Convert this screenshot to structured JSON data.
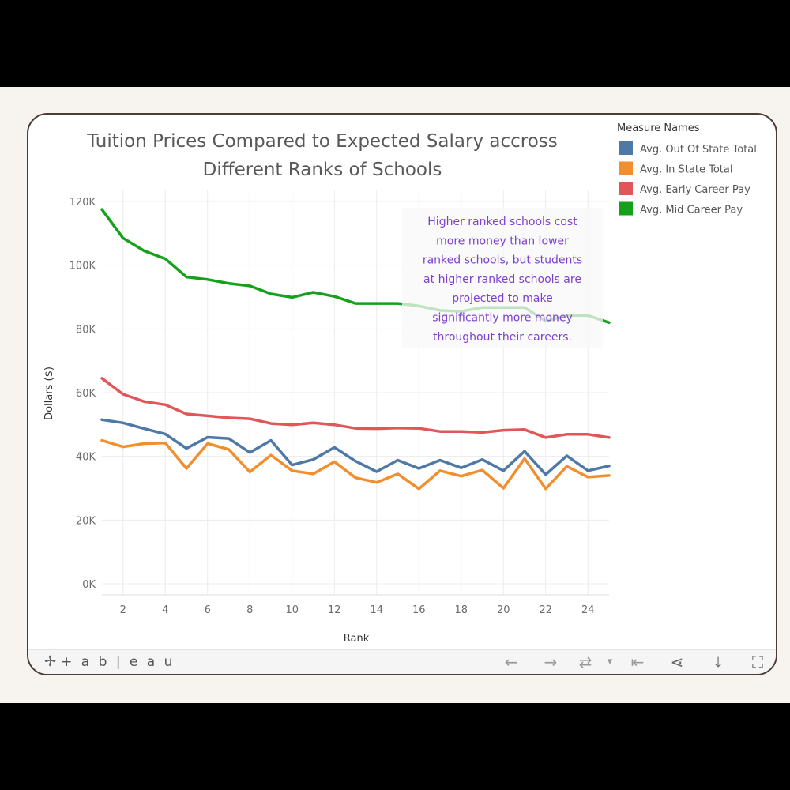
{
  "toolbar": {
    "logo_text": "+ a b | e a u",
    "buttons": [
      {
        "name": "undo-button",
        "icon": "arrow-left-icon",
        "glyph": "←"
      },
      {
        "name": "redo-button",
        "icon": "arrow-right-icon",
        "glyph": "→"
      },
      {
        "name": "revert-button",
        "icon": "revert-icon",
        "glyph": "⇄"
      },
      {
        "name": "revert-dropdown",
        "icon": "chevron-down-icon",
        "glyph": "▾"
      },
      {
        "name": "reset-button",
        "icon": "reset-to-start-icon",
        "glyph": "⇤"
      },
      {
        "name": "share-button",
        "icon": "share-icon",
        "glyph": "⋖"
      },
      {
        "name": "download-button",
        "icon": "download-icon",
        "glyph": "⤓"
      },
      {
        "name": "fullscreen-button",
        "icon": "fullscreen-icon",
        "glyph": "⛶"
      }
    ]
  },
  "chart_data": {
    "type": "line",
    "title_lines": [
      "Tuition Prices Compared to Expected Salary accross",
      "Different Ranks of Schools"
    ],
    "xlabel": "Rank",
    "ylabel": "Dollars ($)",
    "xlim": [
      1,
      25
    ],
    "ylim": [
      0,
      120000
    ],
    "xticks": [
      2,
      4,
      6,
      8,
      10,
      12,
      14,
      16,
      18,
      20,
      22,
      24
    ],
    "yticks": [
      {
        "value": 0,
        "label": "0K"
      },
      {
        "value": 20000,
        "label": "20K"
      },
      {
        "value": 40000,
        "label": "40K"
      },
      {
        "value": 60000,
        "label": "60K"
      },
      {
        "value": 80000,
        "label": "80K"
      },
      {
        "value": 100000,
        "label": "100K"
      },
      {
        "value": 120000,
        "label": "120K"
      }
    ],
    "grid": true,
    "legend": {
      "title": "Measure Names",
      "placement": "top-right"
    },
    "x": [
      1,
      2,
      3,
      4,
      5,
      6,
      7,
      8,
      9,
      10,
      11,
      12,
      13,
      14,
      15,
      16,
      17,
      18,
      19,
      20,
      21,
      22,
      23,
      24,
      25
    ],
    "series": [
      {
        "name": "Avg. Out Of State Total",
        "color": "#4e79a7",
        "values": [
          51500,
          50500,
          48700,
          47000,
          42500,
          46000,
          45600,
          41200,
          45000,
          37300,
          39000,
          42800,
          38500,
          35200,
          38800,
          36200,
          38800,
          36400,
          39000,
          35500,
          41600,
          34300,
          40200,
          35500,
          37000
        ]
      },
      {
        "name": "Avg. In State Total",
        "color": "#f28e2b",
        "values": [
          45000,
          43000,
          44000,
          44200,
          36200,
          44000,
          42200,
          35100,
          40400,
          35500,
          34500,
          38300,
          33300,
          31800,
          34500,
          29800,
          35500,
          33800,
          35700,
          30000,
          39300,
          29800,
          36900,
          33500,
          34000
        ]
      },
      {
        "name": "Avg. Early Career Pay",
        "color": "#e15759",
        "values": [
          64500,
          59500,
          57200,
          56200,
          53300,
          52700,
          52100,
          51800,
          50300,
          49900,
          50500,
          49900,
          48800,
          48700,
          48900,
          48800,
          47800,
          47800,
          47500,
          48200,
          48400,
          45900,
          46900,
          46900,
          45900
        ]
      },
      {
        "name": "Avg. Mid Career Pay",
        "color": "#16a11b",
        "values": [
          117500,
          108500,
          104500,
          102000,
          96300,
          95500,
          94300,
          93500,
          91000,
          89900,
          91500,
          90200,
          88000,
          88000,
          88000,
          87200,
          85800,
          85500,
          86700,
          86700,
          86700,
          82500,
          84200,
          84200,
          82000
        ]
      }
    ],
    "annotation": {
      "lines": [
        "Higher ranked schools cost",
        "more money than lower",
        "ranked schools, but students",
        "at higher ranked schools are",
        "projected to make",
        "significantly more money",
        "throughout their careers."
      ]
    }
  }
}
